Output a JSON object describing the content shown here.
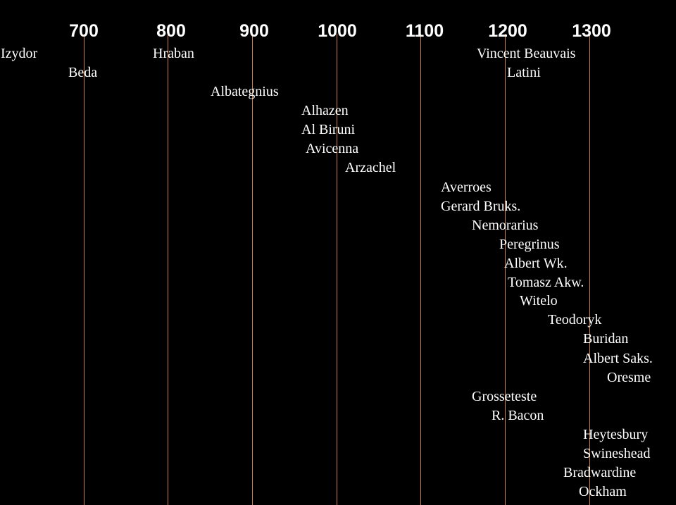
{
  "colors": {
    "background": "#000000",
    "text": "#ffffff",
    "grid_line": "#c8804a"
  },
  "years": [
    "700",
    "800",
    "900",
    "1000",
    "1100",
    "1200",
    "1300"
  ],
  "scholars": [
    "Izydor",
    "Hraban",
    "Vincent Beauvais",
    "Beda",
    "Latini",
    "Albategnius",
    "Alhazen",
    "Al Biruni",
    "Avicenna",
    "Arzachel",
    "Averroes",
    "Gerard Bruks.",
    "Nemorarius",
    "Peregrinus",
    "Albert Wk.",
    "Tomasz Akw.",
    "Witelo",
    "Teodoryk",
    "Buridan",
    "Albert Saks.",
    "Oresme",
    "Grosseteste",
    "R. Bacon",
    "Heytesbury",
    "Swineshead",
    "Bradwardine",
    "Ockham"
  ]
}
